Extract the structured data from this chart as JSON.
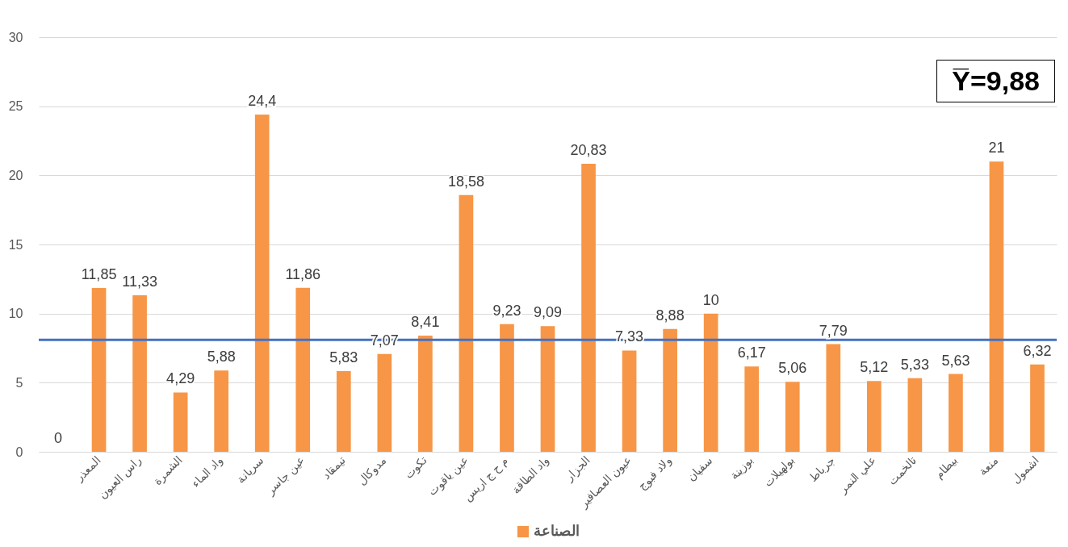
{
  "chart_data": {
    "type": "bar",
    "categories": [
      null,
      "المعذر",
      "راس العيون",
      "الشمرة",
      "واد الماء",
      "سريانة",
      "عين جاسر",
      "تيمقاد",
      "مدوكال",
      "تكوت",
      "عين ياقوت",
      "م ح ج اريس",
      "واد الطاقة",
      "الجزار",
      "عيون العصافير",
      "ولاد فبوج",
      "سفيان",
      "بوزينة",
      "بولهيلات",
      "جرباط",
      "علي النمر",
      "تالخمت",
      "بيطام",
      "منعة",
      "اشمول"
    ],
    "series": [
      {
        "name": "الصناعة",
        "color": "#f79646",
        "values": [
          0,
          11.85,
          11.33,
          4.29,
          5.88,
          24.4,
          11.86,
          5.83,
          7.07,
          8.41,
          18.58,
          9.23,
          9.09,
          20.83,
          7.33,
          8.88,
          10,
          6.17,
          5.06,
          7.79,
          5.12,
          5.33,
          5.63,
          21,
          6.32
        ],
        "value_labels": [
          "0",
          "11,85",
          "11,33",
          "4,29",
          "5,88",
          "24,4",
          "11,86",
          "5,83",
          "7,07",
          "8,41",
          "18,58",
          "9,23",
          "9,09",
          "20,83",
          "7,33",
          "8,88",
          "10",
          "6,17",
          "5,06",
          "7,79",
          "5,12",
          "5,33",
          "5,63",
          "21",
          "6,32"
        ]
      }
    ],
    "ylim": [
      0,
      30
    ],
    "yticks": [
      0,
      5,
      10,
      15,
      20,
      25,
      30
    ],
    "grid": "y",
    "legend": "bottom",
    "ref_lines": [
      {
        "axis": "y",
        "value": 8.1,
        "color": "#4472c4"
      }
    ],
    "annotations": [
      "Y̅=9,88"
    ]
  }
}
